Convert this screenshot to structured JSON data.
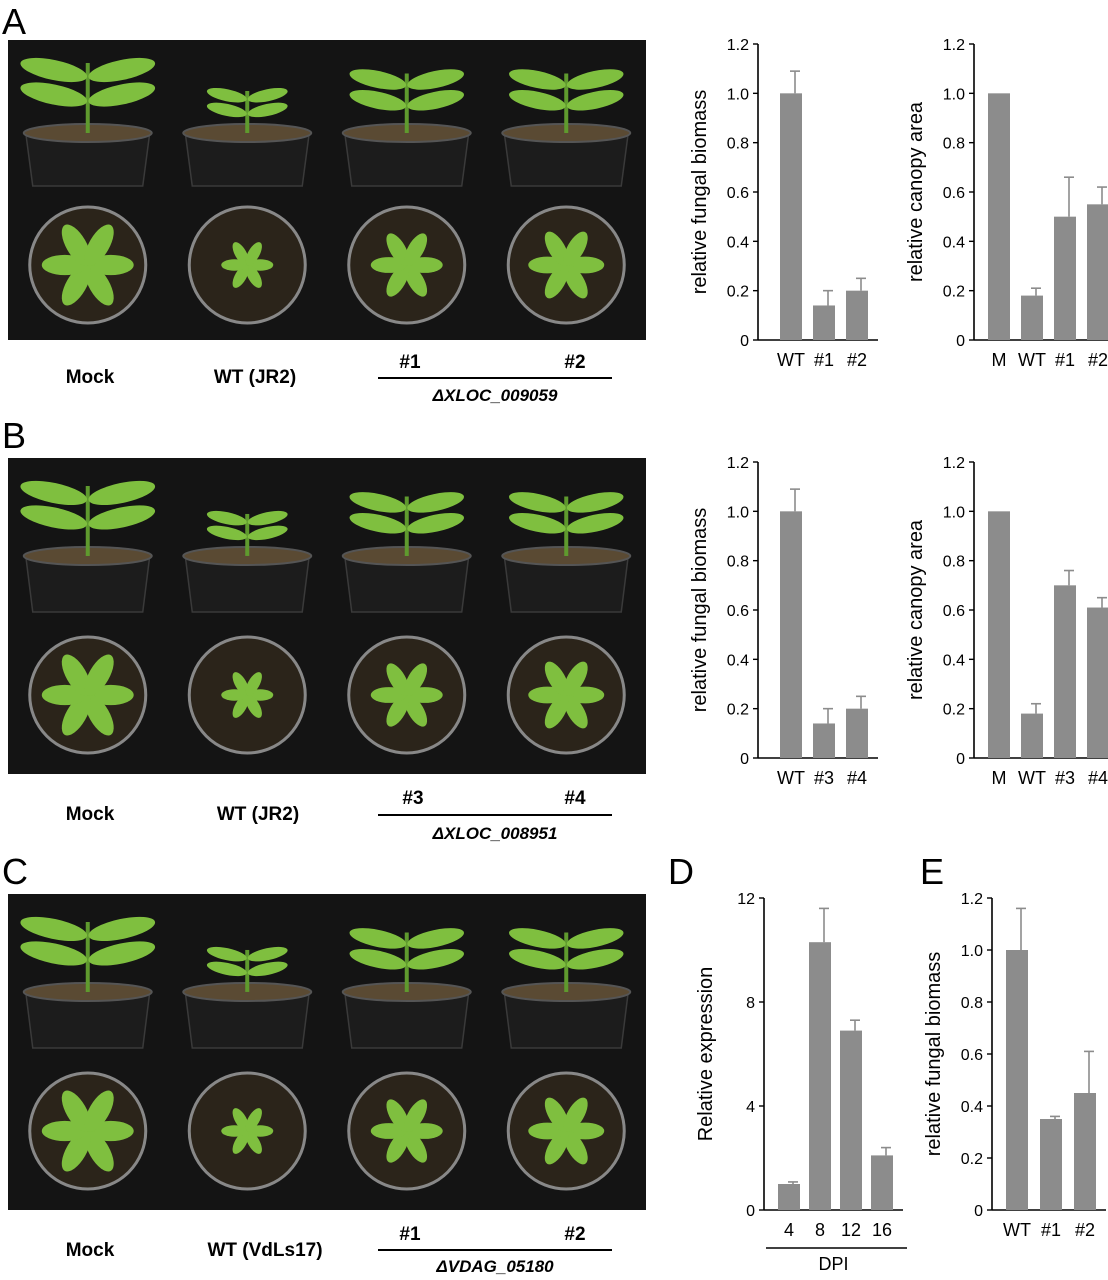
{
  "colors": {
    "bar": "#8c8c8c",
    "photo_bg": "#141414",
    "plant": "#7fbf3f",
    "soil": "#5a4a33",
    "pot": "#1c1c1c"
  },
  "panels": {
    "A": {
      "letter": "A",
      "labels": {
        "mock": "Mock",
        "wt": "WT (JR2)",
        "m1": "#1",
        "m2": "#2"
      },
      "gene": "ΔXLOC_009059"
    },
    "B": {
      "letter": "B",
      "labels": {
        "mock": "Mock",
        "wt": "WT (JR2)",
        "m1": "#3",
        "m2": "#4"
      },
      "gene": "ΔXLOC_008951"
    },
    "C": {
      "letter": "C",
      "labels": {
        "mock": "Mock",
        "wt": "WT (VdLs17)",
        "m1": "#1",
        "m2": "#2"
      },
      "gene": "ΔVDAG_05180"
    },
    "D": {
      "letter": "D"
    },
    "E": {
      "letter": "E"
    }
  },
  "chart_data": [
    {
      "id": "A-biomass",
      "type": "bar",
      "categories": [
        "WT",
        "#1",
        "#2"
      ],
      "values": [
        1.0,
        0.14,
        0.2
      ],
      "errors": [
        0.09,
        0.06,
        0.05
      ],
      "ylabel": "relative fungal biomass",
      "ylim": [
        0,
        1.2
      ],
      "yticks": [
        "0",
        "0.2",
        "0.4",
        "0.6",
        "0.8",
        "1.0",
        "1.2"
      ]
    },
    {
      "id": "A-canopy",
      "type": "bar",
      "categories": [
        "M",
        "WT",
        "#1",
        "#2"
      ],
      "values": [
        1.0,
        0.18,
        0.5,
        0.55
      ],
      "errors": [
        0,
        0.03,
        0.16,
        0.07
      ],
      "ylabel": "relative canopy area",
      "ylim": [
        0,
        1.2
      ],
      "yticks": [
        "0",
        "0.2",
        "0.4",
        "0.6",
        "0.8",
        "1.0",
        "1.2"
      ]
    },
    {
      "id": "B-biomass",
      "type": "bar",
      "categories": [
        "WT",
        "#3",
        "#4"
      ],
      "values": [
        1.0,
        0.14,
        0.2
      ],
      "errors": [
        0.09,
        0.06,
        0.05
      ],
      "ylabel": "relative fungal biomass",
      "ylim": [
        0,
        1.2
      ],
      "yticks": [
        "0",
        "0.2",
        "0.4",
        "0.6",
        "0.8",
        "1.0",
        "1.2"
      ]
    },
    {
      "id": "B-canopy",
      "type": "bar",
      "categories": [
        "M",
        "WT",
        "#3",
        "#4"
      ],
      "values": [
        1.0,
        0.18,
        0.7,
        0.61
      ],
      "errors": [
        0,
        0.04,
        0.06,
        0.04
      ],
      "ylabel": "relative canopy area",
      "ylim": [
        0,
        1.2
      ],
      "yticks": [
        "0",
        "0.2",
        "0.4",
        "0.6",
        "0.8",
        "1.0",
        "1.2"
      ]
    },
    {
      "id": "D-expression",
      "type": "bar",
      "categories": [
        "4",
        "8",
        "12",
        "16"
      ],
      "values": [
        1.0,
        10.3,
        6.9,
        2.1
      ],
      "errors": [
        0.08,
        1.3,
        0.4,
        0.3
      ],
      "ylabel": "Relative expression",
      "xlabel": "DPI",
      "ylim": [
        0,
        12
      ],
      "yticks": [
        "0",
        "4",
        "8",
        "12"
      ]
    },
    {
      "id": "E-biomass",
      "type": "bar",
      "categories": [
        "WT",
        "#1",
        "#2"
      ],
      "values": [
        1.0,
        0.35,
        0.45
      ],
      "errors": [
        0.16,
        0.01,
        0.16
      ],
      "ylabel": "relative fungal biomass",
      "ylim": [
        0,
        1.2
      ],
      "yticks": [
        "0",
        "0.2",
        "0.4",
        "0.6",
        "0.8",
        "1.0",
        "1.2"
      ]
    }
  ]
}
